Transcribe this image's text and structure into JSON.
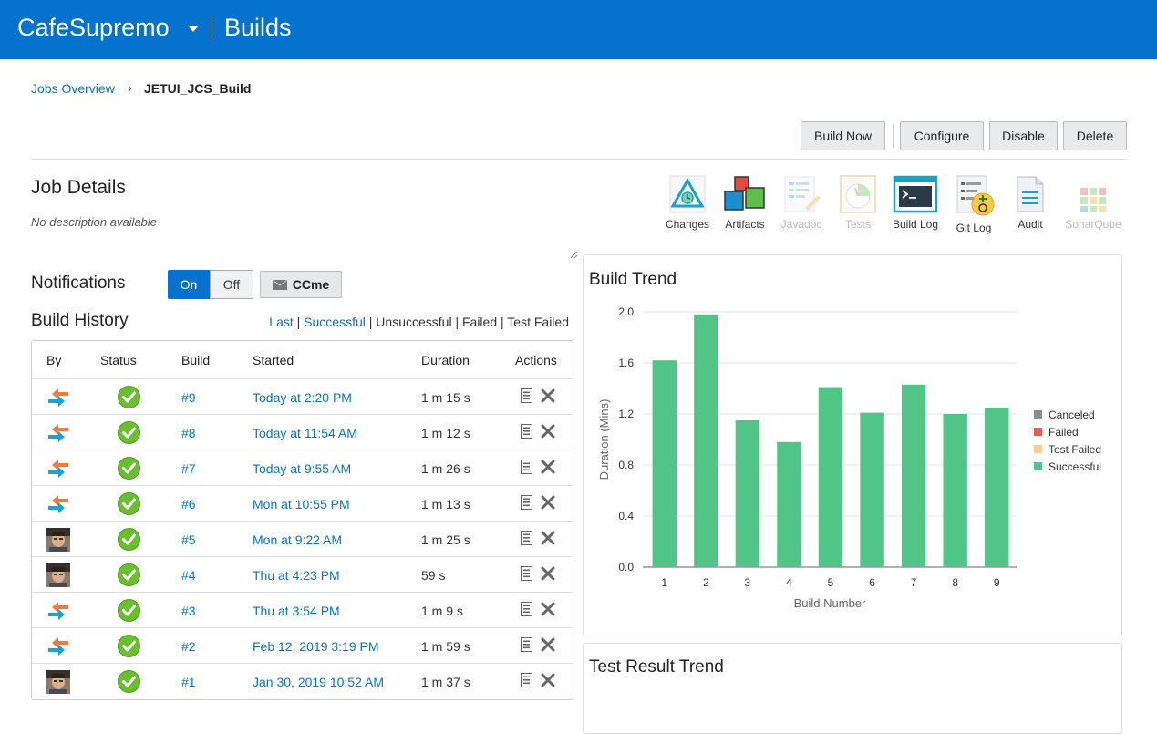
{
  "header": {
    "app_name": "CafeSupremo",
    "section": "Builds"
  },
  "breadcrumb": {
    "parent": "Jobs Overview",
    "current": "JETUI_JCS_Build"
  },
  "toolbar": {
    "build_now": "Build Now",
    "configure": "Configure",
    "disable": "Disable",
    "delete": "Delete"
  },
  "job": {
    "title": "Job Details",
    "description": "No description available"
  },
  "tools": [
    {
      "label": "Changes",
      "enabled": true
    },
    {
      "label": "Artifacts",
      "enabled": true
    },
    {
      "label": "Javadoc",
      "enabled": false
    },
    {
      "label": "Tests",
      "enabled": false
    },
    {
      "label": "Build Log",
      "enabled": true
    },
    {
      "label": "Git Log",
      "enabled": true
    },
    {
      "label": "Audit",
      "enabled": true
    },
    {
      "label": "SonarQube",
      "enabled": false
    }
  ],
  "notifications": {
    "label": "Notifications",
    "on": "On",
    "off": "Off",
    "ccme": "CCme",
    "state": "On"
  },
  "history": {
    "title": "Build History",
    "filters": {
      "last": "Last",
      "successful": "Successful",
      "unsuccessful": "Unsuccessful",
      "failed": "Failed",
      "test_failed": "Test Failed",
      "sep": "|"
    },
    "columns": {
      "by": "By",
      "status": "Status",
      "build": "Build",
      "started": "Started",
      "duration": "Duration",
      "actions": "Actions"
    },
    "rows": [
      {
        "by": "scm-trigger-icon",
        "build": "#9",
        "started": "Today at 2:20 PM",
        "duration": "1 m 15 s"
      },
      {
        "by": "scm-trigger-icon",
        "build": "#8",
        "started": "Today at 11:54 AM",
        "duration": "1 m 12 s"
      },
      {
        "by": "scm-trigger-icon",
        "build": "#7",
        "started": "Today at 9:55 AM",
        "duration": "1 m 26 s"
      },
      {
        "by": "scm-trigger-icon",
        "build": "#6",
        "started": "Mon at 10:55 PM",
        "duration": "1 m 13 s"
      },
      {
        "by": "user-avatar",
        "build": "#5",
        "started": "Mon at 9:22 AM",
        "duration": "1 m 25 s"
      },
      {
        "by": "user-avatar",
        "build": "#4",
        "started": "Thu at 4:23 PM",
        "duration": "59 s"
      },
      {
        "by": "scm-trigger-icon",
        "build": "#3",
        "started": "Thu at 3:54 PM",
        "duration": "1 m 9 s"
      },
      {
        "by": "scm-trigger-icon",
        "build": "#2",
        "started": "Feb 12, 2019 3:19 PM",
        "duration": "1 m 59 s"
      },
      {
        "by": "user-avatar",
        "build": "#1",
        "started": "Jan 30, 2019 10:52 AM",
        "duration": "1 m 37 s"
      }
    ]
  },
  "build_trend": {
    "title": "Build Trend",
    "chart_data": {
      "type": "bar",
      "categories": [
        "1",
        "2",
        "3",
        "4",
        "5",
        "6",
        "7",
        "8",
        "9"
      ],
      "series": [
        {
          "name": "Successful",
          "values": [
            1.62,
            1.98,
            1.15,
            0.98,
            1.41,
            1.21,
            1.43,
            1.2,
            1.25
          ]
        }
      ],
      "xlabel": "Build Number",
      "ylabel": "Duration (Mins)",
      "ylim": [
        0,
        2.0
      ],
      "yticks": [
        "0.0",
        "0.4",
        "0.8",
        "1.2",
        "1.6",
        "2.0"
      ],
      "legend": [
        {
          "name": "Canceled",
          "color": "#8c8c8c"
        },
        {
          "name": "Failed",
          "color": "#ed5b4c"
        },
        {
          "name": "Test Failed",
          "color": "#fdcb98"
        },
        {
          "name": "Successful",
          "color": "#51c487"
        }
      ],
      "legend_position": "right",
      "grid": true
    }
  },
  "test_trend": {
    "title": "Test Result Trend"
  },
  "colors": {
    "brand": "#0572ce",
    "success": "#6abf2f",
    "bar": "#51c487"
  }
}
